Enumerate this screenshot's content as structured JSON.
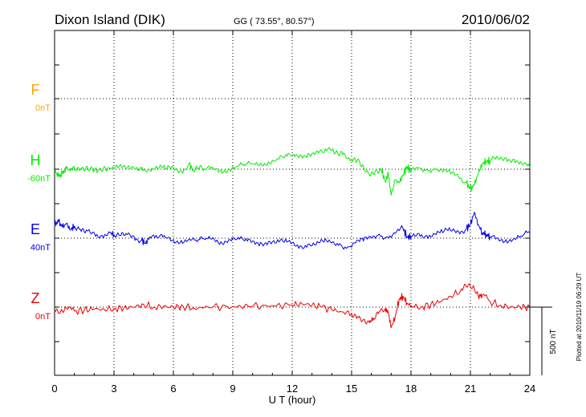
{
  "header": {
    "station": "Dixon Island (DIK)",
    "coords": "GG ( 73.55°,  80.57°)",
    "date": "2010/06/02"
  },
  "plotted_note": "Plotted at 2010/11/19 06:29 UT",
  "scale_bar": {
    "label": "500 nT",
    "value": 500
  },
  "chart_data": {
    "type": "line",
    "xlabel": "U T (hour)",
    "xlim": [
      0,
      24
    ],
    "xticks": [
      0,
      3,
      6,
      9,
      12,
      15,
      18,
      21,
      24
    ],
    "ylabel": "",
    "grid": true,
    "series": [
      {
        "name": "F",
        "baseline_label": "0nT",
        "color": "#ffa500",
        "x": [],
        "values": []
      },
      {
        "name": "H",
        "baseline_label": "-60nT",
        "color": "#00ee00",
        "x": [
          0,
          0.2,
          0.4,
          0.6,
          0.8,
          1.0,
          1.3,
          1.6,
          1.9,
          2.2,
          2.5,
          2.8,
          3.2,
          3.6,
          4.0,
          4.4,
          4.8,
          5.2,
          5.6,
          6.0,
          6.4,
          6.8,
          7.0,
          7.3,
          7.6,
          8.0,
          8.4,
          8.8,
          9.2,
          9.6,
          10.0,
          10.4,
          10.8,
          11.2,
          11.6,
          12.0,
          12.4,
          12.8,
          13.2,
          13.6,
          14.0,
          14.3,
          14.6,
          15.0,
          15.3,
          15.6,
          15.9,
          16.2,
          16.5,
          16.7,
          16.85,
          17.0,
          17.2,
          17.4,
          17.6,
          17.8,
          18.0,
          18.4,
          18.8,
          19.2,
          19.6,
          20.0,
          20.4,
          20.8,
          21.0,
          21.2,
          21.4,
          21.6,
          21.8,
          22.0,
          22.4,
          22.8,
          23.2,
          23.6,
          24.0
        ],
        "values": [
          -10,
          -55,
          -35,
          5,
          -10,
          20,
          5,
          20,
          10,
          -5,
          20,
          5,
          10,
          0,
          10,
          15,
          -5,
          5,
          0,
          10,
          -10,
          40,
          -10,
          10,
          -5,
          10,
          -5,
          5,
          20,
          25,
          40,
          45,
          55,
          70,
          85,
          100,
          105,
          115,
          125,
          120,
          140,
          115,
          120,
          75,
          70,
          20,
          -40,
          -10,
          0,
          -90,
          -20,
          -190,
          -80,
          -100,
          -40,
          20,
          -15,
          10,
          0,
          5,
          -20,
          -35,
          -55,
          -100,
          -150,
          -115,
          -30,
          40,
          60,
          60,
          80,
          85,
          75,
          40,
          10
        ]
      },
      {
        "name": "E",
        "baseline_label": "40nT",
        "color": "#0000ee",
        "x": [
          0,
          0.2,
          0.4,
          0.6,
          0.8,
          1.0,
          1.3,
          1.6,
          2.0,
          2.4,
          2.8,
          3.0,
          3.3,
          3.6,
          4.0,
          4.4,
          4.6,
          4.8,
          5.2,
          5.6,
          6.0,
          6.4,
          6.8,
          7.2,
          7.6,
          8.0,
          8.4,
          8.8,
          9.2,
          9.6,
          10.0,
          10.4,
          10.8,
          11.2,
          11.6,
          12.0,
          12.4,
          12.8,
          13.2,
          13.6,
          14.0,
          14.4,
          14.8,
          15.2,
          15.6,
          16.0,
          16.4,
          16.8,
          17.2,
          17.6,
          17.8,
          18.0,
          18.4,
          18.8,
          19.2,
          19.6,
          20.0,
          20.4,
          20.8,
          21.0,
          21.2,
          21.4,
          21.6,
          21.8,
          22.0,
          22.4,
          22.8,
          23.2,
          23.6,
          24.0
        ],
        "values": [
          100,
          120,
          80,
          105,
          60,
          90,
          65,
          60,
          40,
          20,
          40,
          25,
          20,
          35,
          15,
          -15,
          -40,
          10,
          0,
          5,
          -15,
          -15,
          -5,
          -25,
          -10,
          5,
          -25,
          -10,
          -10,
          -20,
          -20,
          -30,
          -25,
          -35,
          -30,
          -35,
          -55,
          -45,
          -50,
          -30,
          -35,
          -40,
          -65,
          -35,
          -20,
          0,
          30,
          10,
          35,
          70,
          10,
          10,
          35,
          20,
          30,
          40,
          55,
          50,
          70,
          100,
          190,
          100,
          40,
          30,
          10,
          0,
          -10,
          0,
          10,
          40
        ]
      },
      {
        "name": "Z",
        "baseline_label": "0nT",
        "color": "#ee0000",
        "x": [
          0,
          0.3,
          0.6,
          1.0,
          1.5,
          2.0,
          2.5,
          3.0,
          3.5,
          4.0,
          4.5,
          5.0,
          5.5,
          6.0,
          6.5,
          7.0,
          8.0,
          9.0,
          10.0,
          11.0,
          12.0,
          12.5,
          13.0,
          13.5,
          14.0,
          14.5,
          15.0,
          15.3,
          15.6,
          15.9,
          16.1,
          16.4,
          16.7,
          16.85,
          17.0,
          17.2,
          17.4,
          17.6,
          17.8,
          18.0,
          18.5,
          19.0,
          19.5,
          20.0,
          20.5,
          20.8,
          21.1,
          21.4,
          21.6,
          22.0,
          22.5,
          23.0,
          23.5,
          24.0
        ],
        "values": [
          -25,
          -35,
          -10,
          -30,
          -20,
          -15,
          -15,
          -10,
          -5,
          0,
          20,
          0,
          5,
          0,
          5,
          -5,
          0,
          5,
          5,
          10,
          15,
          25,
          15,
          0,
          -20,
          -35,
          -45,
          -70,
          -90,
          -115,
          -80,
          -30,
          -10,
          -40,
          -150,
          -70,
          60,
          80,
          30,
          10,
          0,
          20,
          40,
          80,
          120,
          150,
          140,
          80,
          90,
          40,
          15,
          0,
          0,
          0
        ]
      }
    ]
  }
}
